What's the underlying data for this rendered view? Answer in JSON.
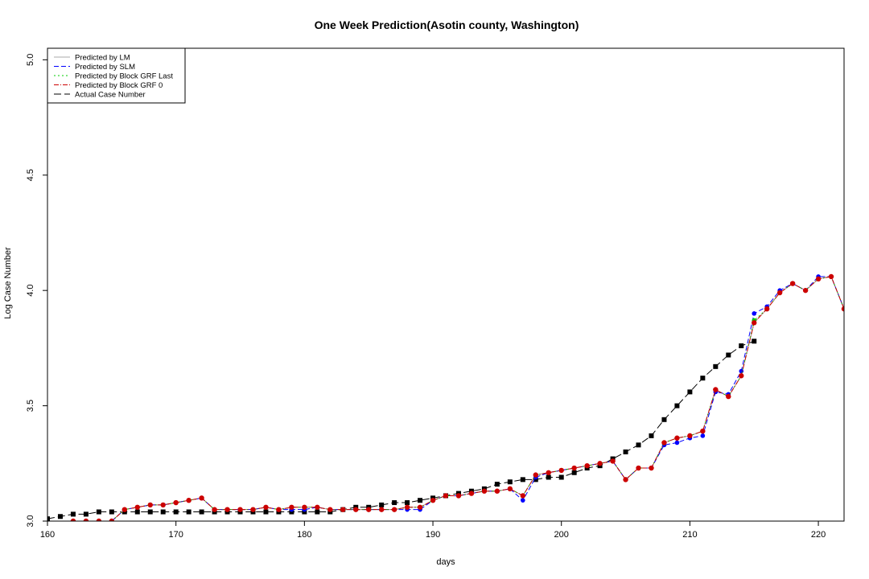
{
  "chart_data": {
    "type": "line",
    "title": "One Week Prediction(Asotin county, Washington)",
    "xlabel": "days",
    "ylabel": "Log Case Number",
    "xlim": [
      160,
      222
    ],
    "ylim": [
      3.0,
      5.05
    ],
    "xticks": [
      160,
      170,
      180,
      190,
      200,
      210,
      220
    ],
    "yticks": [
      3.0,
      3.5,
      4.0,
      4.5,
      5.0
    ],
    "xtick_labels": [
      "160",
      "170",
      "180",
      "190",
      "200",
      "210",
      "220"
    ],
    "ytick_labels": [
      "3.0",
      "3.5",
      "4.0",
      "4.5",
      "5.0"
    ],
    "legend_position": "top-left",
    "x": [
      160,
      161,
      162,
      163,
      164,
      165,
      166,
      167,
      168,
      169,
      170,
      171,
      172,
      173,
      174,
      175,
      176,
      177,
      178,
      179,
      180,
      181,
      182,
      183,
      184,
      185,
      186,
      187,
      188,
      189,
      190,
      191,
      192,
      193,
      194,
      195,
      196,
      197,
      198,
      199,
      200,
      201,
      202,
      203,
      204,
      205,
      206,
      207,
      208,
      209,
      210,
      211,
      212,
      213,
      214,
      215,
      216,
      217,
      218,
      219,
      220,
      221,
      222
    ],
    "series": [
      {
        "name": "Predicted by LM",
        "color": "#aaaaaa",
        "dash": "",
        "marker": "circle",
        "values": [
          2.99,
          2.99,
          3.0,
          3.0,
          3.0,
          3.0,
          3.05,
          3.06,
          3.07,
          3.07,
          3.08,
          3.09,
          3.1,
          3.05,
          3.05,
          3.05,
          3.05,
          3.06,
          3.05,
          3.06,
          3.06,
          3.06,
          3.05,
          3.05,
          3.05,
          3.05,
          3.05,
          3.05,
          3.06,
          3.06,
          3.09,
          3.11,
          3.11,
          3.12,
          3.13,
          3.13,
          3.14,
          3.11,
          3.2,
          3.21,
          3.22,
          3.23,
          3.24,
          3.25,
          3.26,
          3.18,
          3.23,
          3.23,
          3.34,
          3.36,
          3.37,
          3.39,
          3.57,
          3.54,
          3.63,
          3.86,
          3.92,
          3.99,
          4.03,
          4.0,
          4.05,
          4.06,
          3.92
        ]
      },
      {
        "name": "Predicted by SLM",
        "color": "#0000ff",
        "dash": "6,3",
        "marker": "circle",
        "values": [
          2.99,
          2.99,
          3.0,
          3.0,
          3.0,
          3.0,
          3.05,
          3.06,
          3.07,
          3.07,
          3.08,
          3.09,
          3.1,
          3.05,
          3.05,
          3.05,
          3.05,
          3.06,
          3.05,
          3.05,
          3.05,
          3.06,
          3.05,
          3.05,
          3.05,
          3.05,
          3.05,
          3.05,
          3.05,
          3.05,
          3.09,
          3.11,
          3.11,
          3.12,
          3.13,
          3.13,
          3.14,
          3.09,
          3.19,
          3.21,
          3.22,
          3.23,
          3.24,
          3.25,
          3.26,
          3.18,
          3.23,
          3.23,
          3.33,
          3.34,
          3.36,
          3.37,
          3.56,
          3.55,
          3.65,
          3.9,
          3.93,
          4.0,
          4.03,
          4.0,
          4.06,
          4.06,
          3.92
        ]
      },
      {
        "name": "Predicted by Block GRF Last",
        "color": "#00cc00",
        "dash": "2,3",
        "marker": "circle",
        "values": [
          2.99,
          2.99,
          3.0,
          3.0,
          3.0,
          3.0,
          3.05,
          3.06,
          3.07,
          3.07,
          3.08,
          3.09,
          3.1,
          3.05,
          3.05,
          3.05,
          3.05,
          3.06,
          3.05,
          3.06,
          3.06,
          3.06,
          3.05,
          3.05,
          3.05,
          3.05,
          3.05,
          3.05,
          3.06,
          3.06,
          3.09,
          3.11,
          3.11,
          3.12,
          3.13,
          3.13,
          3.14,
          3.11,
          3.2,
          3.21,
          3.22,
          3.23,
          3.24,
          3.25,
          3.26,
          3.18,
          3.23,
          3.23,
          3.34,
          3.36,
          3.37,
          3.39,
          3.57,
          3.54,
          3.63,
          3.87,
          3.92,
          3.99,
          4.03,
          4.0,
          4.05,
          4.06,
          3.92
        ]
      },
      {
        "name": "Predicted by Block GRF 0",
        "color": "#cc0000",
        "dash": "6,2,1,2",
        "marker": "circle",
        "values": [
          2.99,
          2.99,
          3.0,
          3.0,
          3.0,
          3.0,
          3.05,
          3.06,
          3.07,
          3.07,
          3.08,
          3.09,
          3.1,
          3.05,
          3.05,
          3.05,
          3.05,
          3.06,
          3.05,
          3.06,
          3.06,
          3.06,
          3.05,
          3.05,
          3.05,
          3.05,
          3.05,
          3.05,
          3.06,
          3.06,
          3.09,
          3.11,
          3.11,
          3.12,
          3.13,
          3.13,
          3.14,
          3.11,
          3.2,
          3.21,
          3.22,
          3.23,
          3.24,
          3.25,
          3.26,
          3.18,
          3.23,
          3.23,
          3.34,
          3.36,
          3.37,
          3.39,
          3.57,
          3.54,
          3.63,
          3.86,
          3.92,
          3.99,
          4.03,
          4.0,
          4.05,
          4.06,
          3.92
        ]
      },
      {
        "name": "Actual Case Number",
        "color": "#000000",
        "dash": "9,4",
        "marker": "square",
        "values": [
          3.01,
          3.02,
          3.03,
          3.03,
          3.04,
          3.04,
          3.04,
          3.04,
          3.04,
          3.04,
          3.04,
          3.04,
          3.04,
          3.04,
          3.04,
          3.04,
          3.04,
          3.04,
          3.04,
          3.04,
          3.04,
          3.04,
          3.04,
          3.05,
          3.06,
          3.06,
          3.07,
          3.08,
          3.08,
          3.09,
          3.1,
          3.11,
          3.12,
          3.13,
          3.14,
          3.16,
          3.17,
          3.18,
          3.18,
          3.19,
          3.19,
          3.21,
          3.23,
          3.24,
          3.27,
          3.3,
          3.33,
          3.37,
          3.44,
          3.5,
          3.56,
          3.62,
          3.67,
          3.72,
          3.76,
          3.78,
          null,
          null,
          null,
          null,
          null,
          null,
          null
        ]
      }
    ]
  }
}
